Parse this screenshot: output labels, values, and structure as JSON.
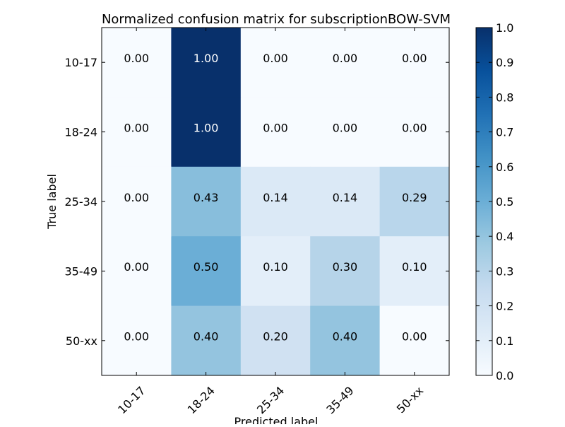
{
  "chart_data": {
    "type": "heatmap",
    "title": "Normalized confusion matrix for subscriptionBOW-SVM",
    "xlabel": "Predicted label",
    "ylabel": "True label",
    "x_categories": [
      "10-17",
      "18-24",
      "25-34",
      "35-49",
      "50-xx"
    ],
    "y_categories": [
      "10-17",
      "18-24",
      "25-34",
      "35-49",
      "50-xx"
    ],
    "values": [
      [
        0.0,
        1.0,
        0.0,
        0.0,
        0.0
      ],
      [
        0.0,
        1.0,
        0.0,
        0.0,
        0.0
      ],
      [
        0.0,
        0.43,
        0.14,
        0.14,
        0.29
      ],
      [
        0.0,
        0.5,
        0.1,
        0.3,
        0.1
      ],
      [
        0.0,
        0.4,
        0.2,
        0.4,
        0.0
      ]
    ],
    "colormap": "Blues",
    "value_range": [
      0.0,
      1.0
    ],
    "colorbar_ticks": [
      "0.0",
      "0.1",
      "0.2",
      "0.3",
      "0.4",
      "0.5",
      "0.6",
      "0.7",
      "0.8",
      "0.9",
      "1.0"
    ],
    "colors": {
      "low": "#f7fbff",
      "high": "#08306b",
      "text_dark": "#000000",
      "text_light": "#ffffff"
    },
    "grid": false,
    "colorbar": "right"
  }
}
